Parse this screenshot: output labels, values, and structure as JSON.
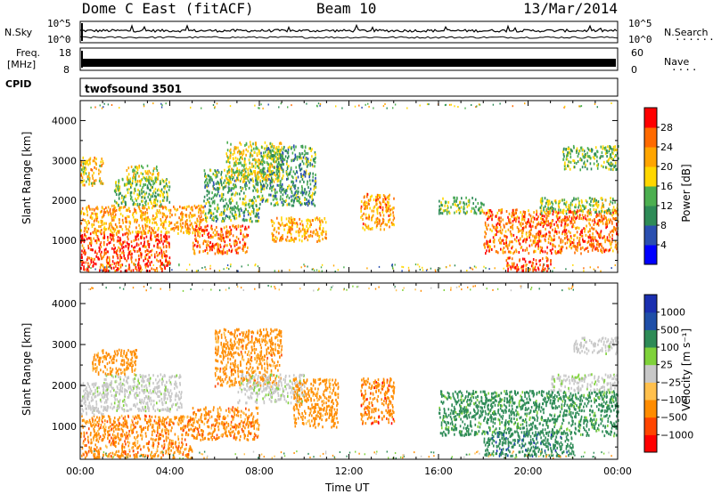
{
  "header": {
    "station": "Dome C East (fitACF)",
    "beam": "Beam 10",
    "date": "13/Mar/2014"
  },
  "strip_panels": {
    "nsky_label": "N.Sky",
    "nsky_ticks": [
      "10^5",
      "10^0"
    ],
    "nsearch_label": "N.Search",
    "nsearch_ticks": [
      "10^5",
      "10^0"
    ],
    "freq_label_line1": "Freq.",
    "freq_label_line2": "[MHz]",
    "freq_ticks": [
      "18",
      "8"
    ],
    "nave_label": "Nave",
    "nave_ticks": [
      "60",
      "0"
    ],
    "cpid_label": "CPID",
    "cpid_value": "twofsound 3501"
  },
  "colors": {
    "power_scale": [
      "#0000ff",
      "#2a4fb0",
      "#2e8b57",
      "#4caf50",
      "#ffd700",
      "#ffa500",
      "#ff6a00",
      "#ff0000"
    ],
    "velocity_scale": [
      "#ff0000",
      "#ff4500",
      "#ff8c00",
      "#ffc04d",
      "#c8c8c8",
      "#7fd23a",
      "#2e8b57",
      "#1f4fa8",
      "#1a2fb0"
    ]
  },
  "chart_data": [
    {
      "type": "heatmap",
      "id": "power",
      "ylabel": "Slant Range [km]",
      "xlabel": "",
      "colorbar_label": "Power [dB]",
      "colorbar_ticks": [
        "28",
        "24",
        "20",
        "16",
        "12",
        "8",
        "4"
      ],
      "colorbar_range": [
        0,
        32
      ],
      "y_ticks": [
        "4000",
        "3000",
        "2000",
        "1000"
      ],
      "y_tick_values": [
        4000,
        3000,
        2000,
        1000
      ],
      "ylim": [
        200,
        4500
      ],
      "xlim": [
        0,
        24
      ],
      "x_ticks": [
        "00:00",
        "04:00",
        "08:00",
        "12:00",
        "16:00",
        "20:00",
        "00:00"
      ],
      "regions": [
        {
          "t0": 0.0,
          "t1": 4.0,
          "r0": 250,
          "r1": 1200,
          "level": 28
        },
        {
          "t0": 0.0,
          "t1": 5.5,
          "r0": 1200,
          "r1": 1900,
          "level": 22
        },
        {
          "t0": 0.0,
          "t1": 1.0,
          "r0": 2400,
          "r1": 3100,
          "level": 20
        },
        {
          "t0": 1.5,
          "t1": 4.0,
          "r0": 1900,
          "r1": 2600,
          "level": 14
        },
        {
          "t0": 2.0,
          "t1": 3.5,
          "r0": 2500,
          "r1": 2900,
          "level": 18
        },
        {
          "t0": 5.0,
          "t1": 7.5,
          "r0": 700,
          "r1": 1400,
          "level": 26
        },
        {
          "t0": 5.5,
          "t1": 8.0,
          "r0": 1500,
          "r1": 2800,
          "level": 13
        },
        {
          "t0": 6.5,
          "t1": 9.0,
          "r0": 2500,
          "r1": 3500,
          "level": 18
        },
        {
          "t0": 8.0,
          "t1": 10.5,
          "r0": 1900,
          "r1": 3400,
          "level": 12
        },
        {
          "t0": 8.5,
          "t1": 11.0,
          "r0": 1000,
          "r1": 1600,
          "level": 22
        },
        {
          "t0": 12.5,
          "t1": 14.0,
          "r0": 1300,
          "r1": 2200,
          "level": 23
        },
        {
          "t0": 16.0,
          "t1": 18.0,
          "r0": 1700,
          "r1": 2100,
          "level": 14
        },
        {
          "t0": 18.0,
          "t1": 24.0,
          "r0": 700,
          "r1": 1800,
          "level": 25
        },
        {
          "t0": 19.0,
          "t1": 21.0,
          "r0": 250,
          "r1": 600,
          "level": 29
        },
        {
          "t0": 20.5,
          "t1": 24.0,
          "r0": 1700,
          "r1": 2100,
          "level": 15
        },
        {
          "t0": 21.5,
          "t1": 24.0,
          "r0": 2800,
          "r1": 3400,
          "level": 14
        }
      ]
    },
    {
      "type": "heatmap",
      "id": "velocity",
      "ylabel": "Slant Range [km]",
      "xlabel": "Time UT",
      "colorbar_label": "Velocity [m s⁻¹]",
      "colorbar_ticks": [
        "1000",
        "500",
        "100",
        "25",
        "−25",
        "−100",
        "−500",
        "−1000"
      ],
      "colorbar_range": [
        -1500,
        1500
      ],
      "y_ticks": [
        "4000",
        "3000",
        "2000",
        "1000"
      ],
      "y_tick_values": [
        4000,
        3000,
        2000,
        1000
      ],
      "ylim": [
        200,
        4500
      ],
      "xlim": [
        0,
        24
      ],
      "x_ticks": [
        "00:00",
        "04:00",
        "08:00",
        "12:00",
        "16:00",
        "20:00",
        "00:00"
      ],
      "regions": [
        {
          "t0": 0.0,
          "t1": 5.0,
          "r0": 250,
          "r1": 1300,
          "level": -300
        },
        {
          "t0": 0.0,
          "t1": 1.2,
          "r0": 1300,
          "r1": 2100,
          "level": 10
        },
        {
          "t0": 1.0,
          "t1": 4.5,
          "r0": 1400,
          "r1": 2300,
          "level": 15
        },
        {
          "t0": 0.5,
          "t1": 2.5,
          "r0": 2300,
          "r1": 2900,
          "level": -150
        },
        {
          "t0": 5.0,
          "t1": 8.0,
          "r0": 700,
          "r1": 1500,
          "level": -300
        },
        {
          "t0": 6.0,
          "t1": 9.0,
          "r0": 2000,
          "r1": 3400,
          "level": -200
        },
        {
          "t0": 7.0,
          "t1": 10.0,
          "r0": 1600,
          "r1": 2300,
          "level": 15
        },
        {
          "t0": 9.5,
          "t1": 11.5,
          "r0": 1000,
          "r1": 2200,
          "level": -150
        },
        {
          "t0": 12.5,
          "t1": 14.0,
          "r0": 1100,
          "r1": 2200,
          "level": -400
        },
        {
          "t0": 16.0,
          "t1": 24.0,
          "r0": 800,
          "r1": 1900,
          "level": 150
        },
        {
          "t0": 18.0,
          "t1": 22.0,
          "r0": 300,
          "r1": 900,
          "level": 400
        },
        {
          "t0": 21.0,
          "t1": 24.0,
          "r0": 1900,
          "r1": 2300,
          "level": 15
        },
        {
          "t0": 22.0,
          "t1": 24.0,
          "r0": 2800,
          "r1": 3200,
          "level": 10
        }
      ]
    }
  ]
}
